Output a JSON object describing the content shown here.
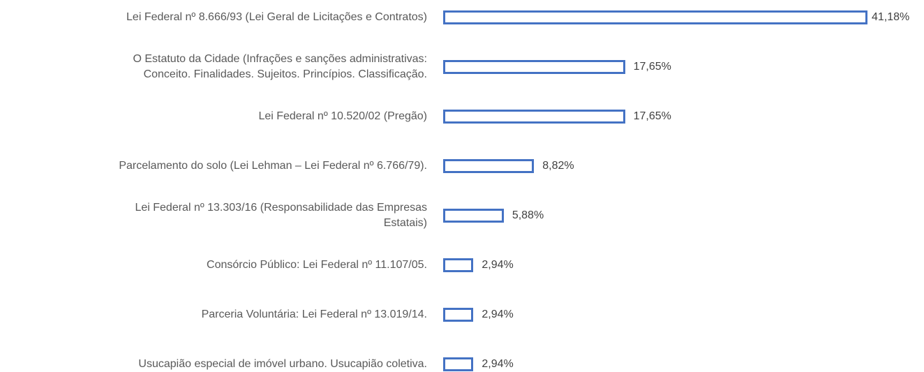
{
  "chart_data": {
    "type": "barh",
    "categories": [
      "Lei Federal nº 8.666/93 (Lei Geral de Licitações e Contratos)",
      "O Estatuto da Cidade (Infrações e sanções administrativas:\nConceito. Finalidades. Sujeitos. Princípios. Classificação.",
      "Lei Federal nº 10.520/02 (Pregão)",
      "Parcelamento do solo (Lei Lehman – Lei Federal nº 6.766/79).",
      "Lei Federal nº 13.303/16 (Responsabilidade das Empresas\nEstatais)",
      "Consórcio Público: Lei Federal nº 11.107/05.",
      "Parceria Voluntária: Lei Federal nº 13.019/14.",
      "Usucapião especial de imóvel urbano. Usucapião coletiva."
    ],
    "values": [
      41.18,
      17.65,
      17.65,
      8.82,
      5.88,
      2.94,
      2.94,
      2.94
    ],
    "value_labels": [
      "41,18%",
      "17,65%",
      "17,65%",
      "8,82%",
      "5,88%",
      "2,94%",
      "2,94%",
      "2,94%"
    ],
    "color": "#4472c4"
  }
}
